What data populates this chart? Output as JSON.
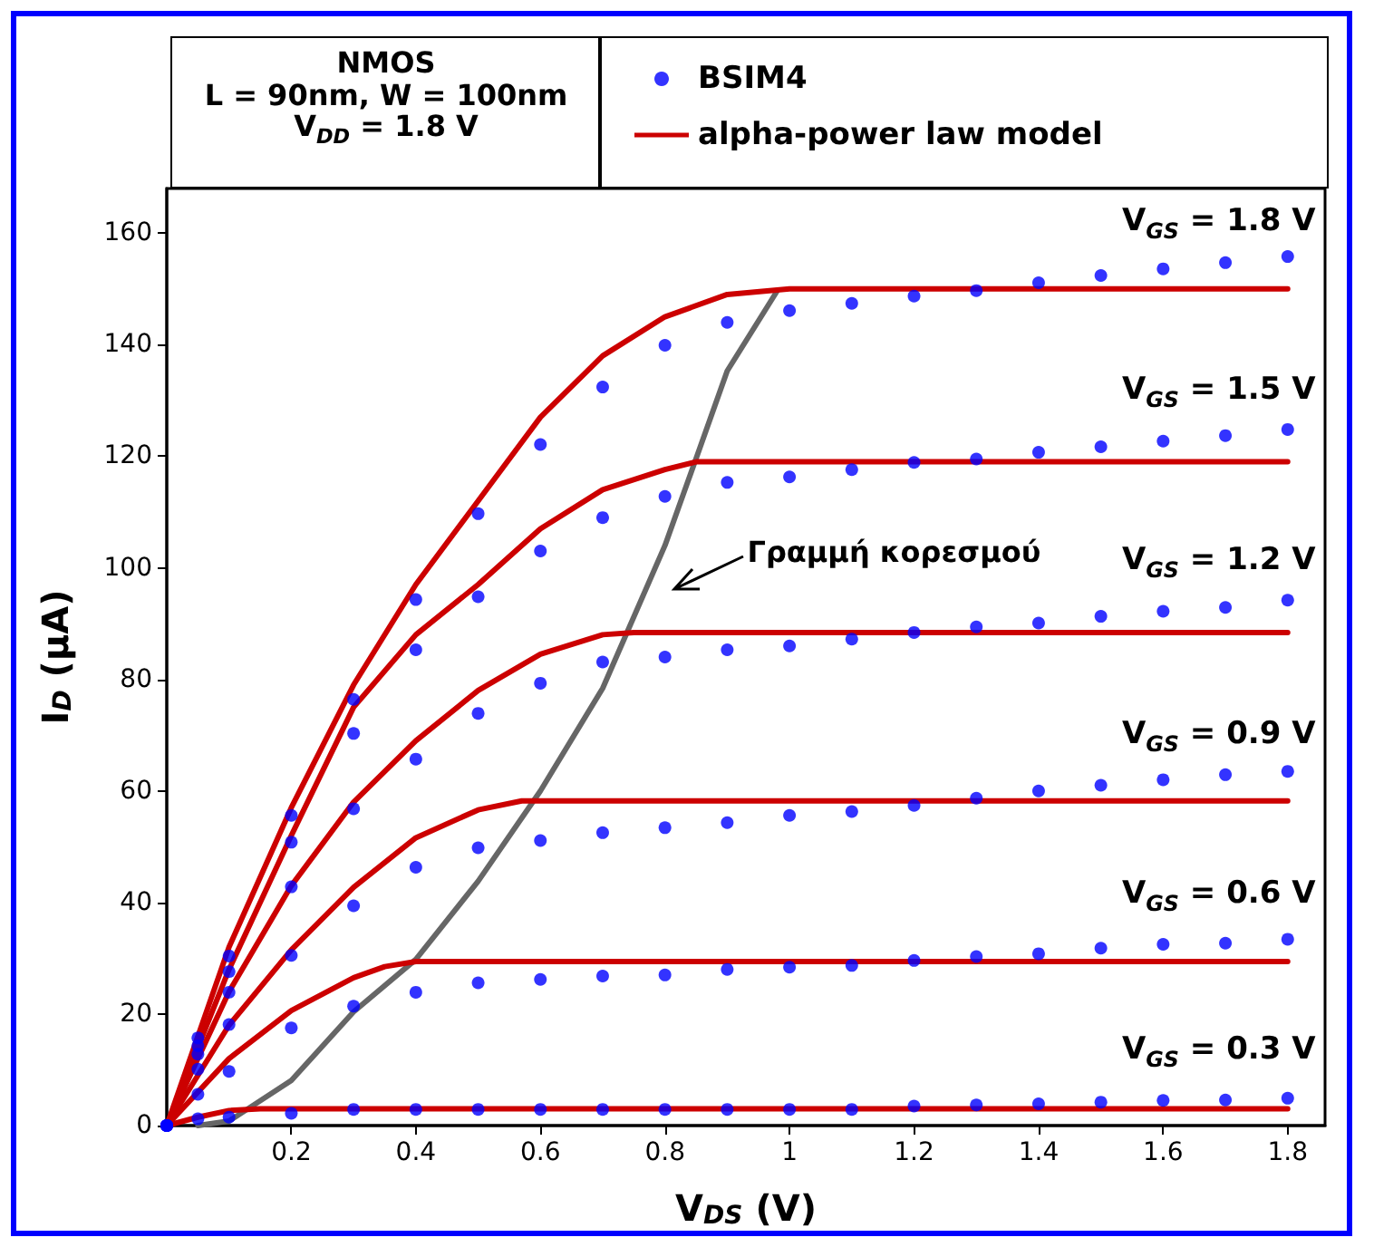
{
  "chart_data": {
    "type": "scatter",
    "xlabel": "V$_{DS}$ (V)",
    "ylabel": "I$_{D}$ (μA)",
    "xlim": [
      0,
      1.86
    ],
    "xticks": [
      0.2,
      0.4,
      0.6,
      0.8,
      1,
      1.2,
      1.4,
      1.6,
      1.8
    ],
    "ylim": [
      0,
      168
    ],
    "yticks": [
      0,
      20,
      40,
      60,
      80,
      100,
      120,
      140,
      160
    ],
    "grid": false,
    "legend": "top right",
    "marker": "circle",
    "annotations": [
      "NMOS",
      "L = 90nm,  W = 100nm",
      "V$_{DD}$ = 1.8 V",
      "V$_{GS}$ = 1.8 V",
      "V$_{GS}$ = 1.5 V",
      "V$_{GS}$ = 1.2 V",
      "V$_{GS}$ = 0.9 V",
      "V$_{GS}$ = 0.6 V",
      "V$_{GS}$ = 0.3 V",
      "Γραμμή κορεσμού"
    ],
    "series": [
      {
        "name": "BSIM4",
        "color": "#0000ff",
        "x": [
          0,
          0.05,
          0.1,
          0.2,
          0.3,
          0.4,
          0.5,
          0.6,
          0.7,
          0.8,
          0.9,
          1.0,
          1.1,
          1.2,
          1.3,
          1.4,
          1.5,
          1.6,
          1.7,
          1.8,
          0,
          0.05,
          0.1,
          0.2,
          0.3,
          0.4,
          0.5,
          0.6,
          0.7,
          0.8,
          0.9,
          1.0,
          1.1,
          1.2,
          1.3,
          1.4,
          1.5,
          1.6,
          1.7,
          1.8,
          0,
          0.05,
          0.1,
          0.2,
          0.3,
          0.4,
          0.5,
          0.6,
          0.7,
          0.8,
          0.9,
          1.0,
          1.1,
          1.2,
          1.3,
          1.4,
          1.5,
          1.6,
          1.7,
          1.8,
          0,
          0.05,
          0.1,
          0.2,
          0.3,
          0.4,
          0.5,
          0.6,
          0.7,
          0.8,
          0.9,
          1.0,
          1.1,
          1.2,
          1.3,
          1.4,
          1.5,
          1.6,
          1.7,
          1.8,
          0,
          0.05,
          0.1,
          0.2,
          0.3,
          0.4,
          0.5,
          0.6,
          0.7,
          0.8,
          0.9,
          1.0,
          1.1,
          1.2,
          1.3,
          1.4,
          1.5,
          1.6,
          1.7,
          1.8,
          0,
          0.05,
          0.1,
          0.2,
          0.3,
          0.4,
          0.5,
          0.6,
          0.7,
          0.8,
          0.9,
          1.0,
          1.1,
          1.2,
          1.3,
          1.4,
          1.5,
          1.6,
          1.7,
          1.8
        ],
        "values": [
          0,
          15.7,
          30.4,
          55.6,
          76.4,
          94.3,
          109.7,
          122.1,
          132.4,
          139.9,
          144.0,
          146.1,
          147.4,
          148.7,
          149.7,
          151.1,
          152.4,
          153.6,
          154.7,
          155.8,
          0,
          14.3,
          27.6,
          50.8,
          70.3,
          85.3,
          94.8,
          103.0,
          109.0,
          112.8,
          115.3,
          116.3,
          117.6,
          118.9,
          119.5,
          120.7,
          121.7,
          122.7,
          123.7,
          124.8,
          0,
          12.8,
          23.9,
          42.8,
          56.8,
          65.7,
          73.9,
          79.3,
          83.1,
          84.0,
          85.3,
          86.0,
          87.2,
          88.4,
          89.4,
          90.1,
          91.3,
          92.2,
          92.9,
          94.2,
          0,
          10.1,
          18.1,
          30.5,
          39.4,
          46.3,
          49.8,
          51.1,
          52.5,
          53.4,
          54.3,
          55.6,
          56.3,
          57.4,
          58.7,
          60.0,
          61.0,
          62.0,
          62.9,
          63.5,
          0,
          5.6,
          9.7,
          17.5,
          21.4,
          23.9,
          25.6,
          26.2,
          26.8,
          27.0,
          28.0,
          28.4,
          28.7,
          29.6,
          30.3,
          30.8,
          31.8,
          32.5,
          32.7,
          33.4,
          0,
          1.2,
          1.5,
          2.2,
          2.9,
          2.9,
          2.9,
          2.9,
          2.9,
          2.9,
          2.9,
          2.9,
          2.9,
          3.5,
          3.7,
          3.9,
          4.2,
          4.5,
          4.6,
          4.9
        ]
      },
      {
        "type": "line",
        "color": "#666666",
        "marker": "none",
        "x": [
          0.05,
          0.1,
          0.2,
          0.3,
          0.4,
          0.5,
          0.6,
          0.7,
          0.8,
          0.85,
          0.9,
          0.98
        ],
        "values": [
          0,
          0.8,
          8.1,
          20.4,
          29.8,
          43.8,
          60,
          78.4,
          104,
          119.6,
          135.3,
          149.6
        ]
      },
      {
        "type": "line",
        "name": "alpha-power law model",
        "color": "#cc0000",
        "marker": "none",
        "x": [
          0,
          0.1,
          0.2,
          0.3,
          0.4,
          0.5,
          0.6,
          0.7,
          0.8,
          0.9,
          1.0,
          1.8
        ],
        "values": [
          0,
          32,
          57,
          79,
          97,
          112,
          127,
          138,
          145,
          149,
          150,
          150
        ]
      },
      {
        "type": "line",
        "color": "#cc0000",
        "marker": "none",
        "x": [
          0,
          0.1,
          0.2,
          0.3,
          0.4,
          0.5,
          0.6,
          0.7,
          0.8,
          0.85,
          1.8
        ],
        "values": [
          0,
          28,
          52,
          75,
          88,
          97,
          107,
          114,
          117.6,
          119,
          119
        ]
      },
      {
        "type": "line",
        "color": "#cc0000",
        "marker": "none",
        "x": [
          0,
          0.1,
          0.2,
          0.3,
          0.4,
          0.5,
          0.6,
          0.7,
          0.75,
          1.8
        ],
        "values": [
          0,
          24,
          43,
          58,
          69,
          78,
          84.5,
          88,
          88.4,
          88.4
        ]
      },
      {
        "type": "line",
        "color": "#cc0000",
        "marker": "none",
        "x": [
          0,
          0.1,
          0.2,
          0.3,
          0.4,
          0.5,
          0.57,
          1.8
        ],
        "values": [
          0,
          18,
          31.5,
          42.7,
          51.6,
          56.6,
          58.2,
          58.2
        ]
      },
      {
        "type": "line",
        "color": "#cc0000",
        "marker": "none",
        "x": [
          0,
          0.1,
          0.2,
          0.3,
          0.35,
          0.4,
          1.8
        ],
        "values": [
          0,
          12,
          20.6,
          26.5,
          28.5,
          29.4,
          29.4
        ]
      },
      {
        "type": "line",
        "color": "#cc0000",
        "marker": "none",
        "x": [
          0,
          0.05,
          0.1,
          0.15,
          1.8
        ],
        "values": [
          0,
          1.5,
          2.7,
          3.0,
          3.0
        ]
      }
    ]
  }
}
